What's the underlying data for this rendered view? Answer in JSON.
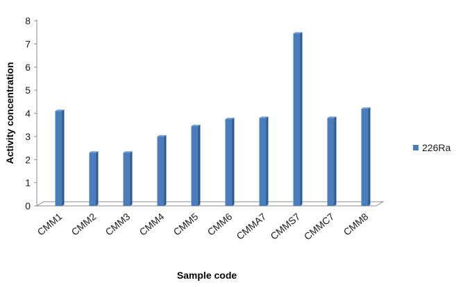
{
  "chart_data": {
    "type": "bar",
    "categories": [
      "CMM1",
      "CMM2",
      "CMM3",
      "CMM4",
      "CMM5",
      "CMM6",
      "CMMA7",
      "CMMS7",
      "CMMC7",
      "CMM8"
    ],
    "series": [
      {
        "name": "226Ra",
        "values": [
          4.1,
          2.3,
          2.3,
          3.0,
          3.45,
          3.75,
          3.8,
          7.45,
          3.8,
          4.2
        ]
      }
    ],
    "xlabel": "Sample code",
    "ylabel": "Activity concentration",
    "ylim": [
      0,
      8
    ],
    "yticks": [
      0,
      1,
      2,
      3,
      4,
      5,
      6,
      7,
      8
    ],
    "grid": false,
    "legend_position": "right",
    "colors": {
      "bar": "#4a7ebb",
      "bar_dark": "#2f5a8f",
      "bar_light": "#6f9fd8",
      "axis": "#8a8a8a"
    }
  }
}
